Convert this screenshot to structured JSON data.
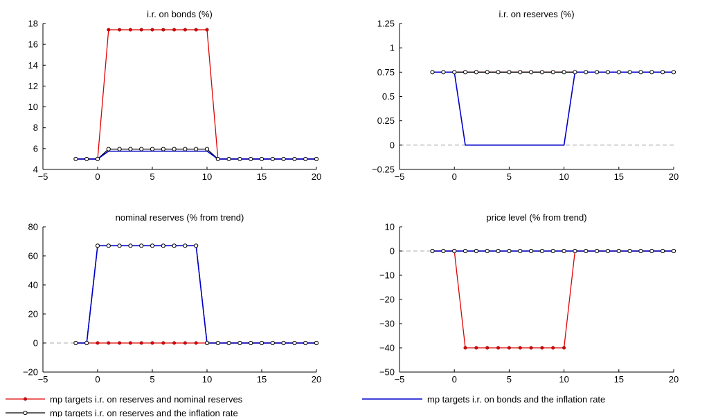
{
  "legend": [
    {
      "label": "mp targets i.r. on reserves and nominal reserves",
      "color": "#e00000",
      "marker": "filled-dot"
    },
    {
      "label": "mp targets i.r. on reserves and the inflation rate",
      "color": "#000000",
      "marker": "open-circle"
    },
    {
      "label": "mp targets i.r. on bonds and the inflation rate",
      "color": "#0000cc",
      "marker": "none"
    }
  ],
  "chart_data": [
    {
      "type": "line",
      "title": "i.r. on bonds (%)",
      "xlim": [
        -5,
        20
      ],
      "ylim": [
        4,
        18
      ],
      "xticks": [
        -5,
        0,
        5,
        10,
        15,
        20
      ],
      "yticks": [
        4,
        6,
        8,
        10,
        12,
        14,
        16,
        18
      ],
      "ytick_labels": [
        "4",
        "6",
        "8",
        "10",
        "12",
        "14",
        "16",
        "18"
      ],
      "zero_line": false,
      "x": [
        -2,
        -1,
        0,
        1,
        2,
        3,
        4,
        5,
        6,
        7,
        8,
        9,
        10,
        11,
        12,
        13,
        14,
        15,
        16,
        17,
        18,
        19,
        20
      ],
      "series": [
        {
          "values": [
            5,
            5,
            5,
            17.4,
            17.4,
            17.4,
            17.4,
            17.4,
            17.4,
            17.4,
            17.4,
            17.4,
            17.4,
            5,
            5,
            5,
            5,
            5,
            5,
            5,
            5,
            5,
            5
          ]
        },
        {
          "values": [
            5,
            5,
            5,
            5.95,
            5.95,
            5.95,
            5.95,
            5.95,
            5.95,
            5.95,
            5.95,
            5.95,
            5.95,
            5,
            5,
            5,
            5,
            5,
            5,
            5,
            5,
            5,
            5
          ]
        },
        {
          "values": [
            5,
            5,
            5,
            5.75,
            5.75,
            5.75,
            5.75,
            5.75,
            5.75,
            5.75,
            5.75,
            5.75,
            5.75,
            5,
            5,
            5,
            5,
            5,
            5,
            5,
            5,
            5,
            5
          ]
        }
      ]
    },
    {
      "type": "line",
      "title": "i.r. on reserves (%)",
      "xlim": [
        -5,
        20
      ],
      "ylim": [
        -0.25,
        1.25
      ],
      "xticks": [
        -5,
        0,
        5,
        10,
        15,
        20
      ],
      "yticks": [
        -0.25,
        0,
        0.25,
        0.5,
        0.75,
        1,
        1.25
      ],
      "ytick_labels": [
        "−0.25",
        "0",
        "0.25",
        "0.5",
        "0.75",
        "1",
        "1.25"
      ],
      "zero_line": true,
      "x": [
        -2,
        -1,
        0,
        1,
        2,
        3,
        4,
        5,
        6,
        7,
        8,
        9,
        10,
        11,
        12,
        13,
        14,
        15,
        16,
        17,
        18,
        19,
        20
      ],
      "series": [
        {
          "values": [
            0.75,
            0.75,
            0.75,
            0.75,
            0.75,
            0.75,
            0.75,
            0.75,
            0.75,
            0.75,
            0.75,
            0.75,
            0.75,
            0.75,
            0.75,
            0.75,
            0.75,
            0.75,
            0.75,
            0.75,
            0.75,
            0.75,
            0.75
          ]
        },
        {
          "values": [
            0.75,
            0.75,
            0.75,
            0.75,
            0.75,
            0.75,
            0.75,
            0.75,
            0.75,
            0.75,
            0.75,
            0.75,
            0.75,
            0.75,
            0.75,
            0.75,
            0.75,
            0.75,
            0.75,
            0.75,
            0.75,
            0.75,
            0.75
          ]
        },
        {
          "values": [
            0.75,
            0.75,
            0.75,
            0,
            0,
            0,
            0,
            0,
            0,
            0,
            0,
            0,
            0,
            0.75,
            0.75,
            0.75,
            0.75,
            0.75,
            0.75,
            0.75,
            0.75,
            0.75,
            0.75
          ]
        }
      ]
    },
    {
      "type": "line",
      "title": "nominal reserves (% from trend)",
      "xlim": [
        -5,
        20
      ],
      "ylim": [
        -20,
        80
      ],
      "xticks": [
        -5,
        0,
        5,
        10,
        15,
        20
      ],
      "yticks": [
        -20,
        0,
        20,
        40,
        60,
        80
      ],
      "ytick_labels": [
        "−20",
        "0",
        "20",
        "40",
        "60",
        "80"
      ],
      "zero_line": true,
      "x": [
        -2,
        -1,
        0,
        1,
        2,
        3,
        4,
        5,
        6,
        7,
        8,
        9,
        10,
        11,
        12,
        13,
        14,
        15,
        16,
        17,
        18,
        19,
        20
      ],
      "series": [
        {
          "values": [
            0,
            0,
            0,
            0,
            0,
            0,
            0,
            0,
            0,
            0,
            0,
            0,
            0,
            0,
            0,
            0,
            0,
            0,
            0,
            0,
            0,
            0,
            0
          ]
        },
        {
          "values": [
            0,
            0,
            67,
            67,
            67,
            67,
            67,
            67,
            67,
            67,
            67,
            67,
            0,
            0,
            0,
            0,
            0,
            0,
            0,
            0,
            0,
            0,
            0
          ]
        },
        {
          "values": [
            0,
            0,
            67,
            67,
            67,
            67,
            67,
            67,
            67,
            67,
            67,
            67,
            0,
            0,
            0,
            0,
            0,
            0,
            0,
            0,
            0,
            0,
            0
          ]
        }
      ]
    },
    {
      "type": "line",
      "title": "price level (% from trend)",
      "xlim": [
        -5,
        20
      ],
      "ylim": [
        -50,
        10
      ],
      "xticks": [
        -5,
        0,
        5,
        10,
        15,
        20
      ],
      "yticks": [
        -50,
        -40,
        -30,
        -20,
        -10,
        0,
        10
      ],
      "ytick_labels": [
        "−50",
        "−40",
        "−30",
        "−20",
        "−10",
        "0",
        "10"
      ],
      "zero_line": true,
      "x": [
        -2,
        -1,
        0,
        1,
        2,
        3,
        4,
        5,
        6,
        7,
        8,
        9,
        10,
        11,
        12,
        13,
        14,
        15,
        16,
        17,
        18,
        19,
        20
      ],
      "series": [
        {
          "values": [
            0,
            0,
            0,
            -40,
            -40,
            -40,
            -40,
            -40,
            -40,
            -40,
            -40,
            -40,
            -40,
            0,
            0,
            0,
            0,
            0,
            0,
            0,
            0,
            0,
            0
          ]
        },
        {
          "values": [
            0,
            0,
            0,
            0,
            0,
            0,
            0,
            0,
            0,
            0,
            0,
            0,
            0,
            0,
            0,
            0,
            0,
            0,
            0,
            0,
            0,
            0,
            0
          ]
        },
        {
          "values": [
            0,
            0,
            0,
            0,
            0,
            0,
            0,
            0,
            0,
            0,
            0,
            0,
            0,
            0,
            0,
            0,
            0,
            0,
            0,
            0,
            0,
            0,
            0
          ]
        }
      ]
    }
  ]
}
